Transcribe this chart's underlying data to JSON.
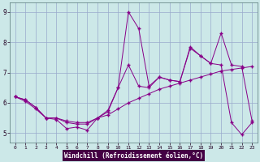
{
  "xlabel": "Windchill (Refroidissement éolien,°C)",
  "bg_color": "#cce8e8",
  "plot_bg": "#cce8e8",
  "line_color": "#880088",
  "grid_color": "#99aacc",
  "xlabel_bg": "#440044",
  "xlabel_fg": "#ffffff",
  "xlim": [
    -0.5,
    23.5
  ],
  "ylim": [
    4.7,
    9.3
  ],
  "yticks": [
    5,
    6,
    7,
    8,
    9
  ],
  "xticks": [
    0,
    1,
    2,
    3,
    4,
    5,
    6,
    7,
    8,
    9,
    10,
    11,
    12,
    13,
    14,
    15,
    16,
    17,
    18,
    19,
    20,
    21,
    22,
    23
  ],
  "line1_x": [
    0,
    1,
    2,
    3,
    4,
    5,
    6,
    7,
    8,
    9,
    10,
    11,
    12,
    13,
    14,
    15,
    16,
    17,
    18,
    19,
    20,
    21,
    22,
    23
  ],
  "line1_y": [
    6.2,
    6.05,
    5.8,
    5.5,
    5.45,
    5.15,
    5.2,
    5.1,
    5.5,
    5.75,
    6.5,
    7.25,
    6.55,
    6.5,
    6.85,
    6.75,
    6.7,
    7.8,
    7.55,
    7.3,
    7.25,
    5.35,
    4.95,
    5.35
  ],
  "line2_x": [
    0,
    1,
    2,
    3,
    4,
    5,
    6,
    7,
    8,
    9,
    10,
    11,
    12,
    13,
    14,
    15,
    16,
    17,
    18,
    19,
    20,
    21,
    22,
    23
  ],
  "line2_y": [
    6.2,
    6.1,
    5.85,
    5.5,
    5.5,
    5.4,
    5.35,
    5.35,
    5.5,
    5.6,
    5.8,
    6.0,
    6.15,
    6.3,
    6.45,
    6.55,
    6.65,
    6.75,
    6.85,
    6.95,
    7.05,
    7.1,
    7.15,
    7.2
  ],
  "line3_x": [
    0,
    1,
    2,
    3,
    4,
    5,
    6,
    7,
    8,
    9,
    10,
    11,
    12,
    13,
    14,
    15,
    16,
    17,
    18,
    19,
    20,
    21,
    22,
    23
  ],
  "line3_y": [
    6.2,
    6.1,
    5.85,
    5.5,
    5.5,
    5.35,
    5.3,
    5.3,
    5.5,
    5.7,
    6.5,
    9.0,
    8.45,
    6.55,
    6.85,
    6.75,
    6.7,
    7.85,
    7.55,
    7.3,
    8.3,
    7.25,
    7.2,
    5.4
  ],
  "marker": "+",
  "markersize": 3.5,
  "linewidth": 0.7
}
